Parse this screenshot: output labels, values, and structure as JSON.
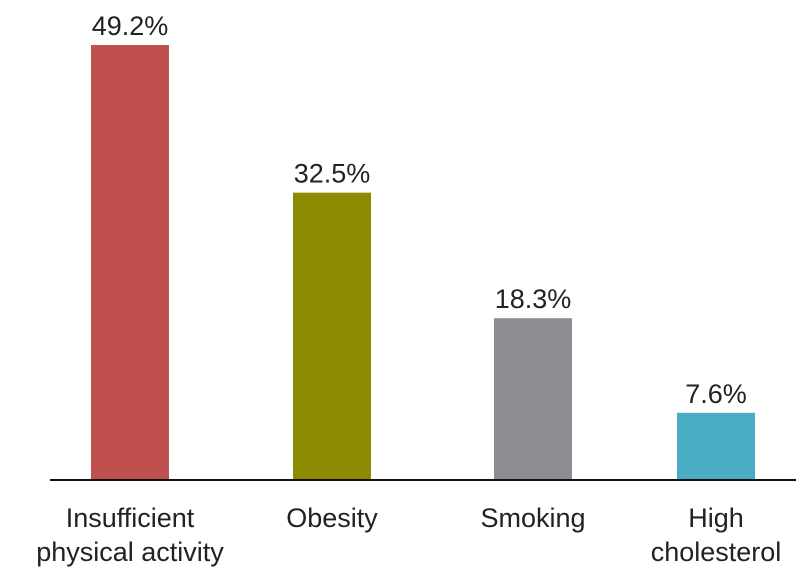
{
  "chart_data": {
    "type": "bar",
    "title": "",
    "xlabel": "",
    "ylabel": "",
    "categories": [
      [
        "Insufficient",
        "physical activity"
      ],
      [
        "Obesity"
      ],
      [
        "Smoking"
      ],
      [
        "High",
        "cholesterol"
      ]
    ],
    "values": [
      49.2,
      32.5,
      18.3,
      7.6
    ],
    "value_labels": [
      "49.2%",
      "32.5%",
      "18.3%",
      "7.6%"
    ],
    "colors": [
      "#c0504d",
      "#8b8a00",
      "#8d8e91",
      "#4bacc6"
    ],
    "ylim": [
      0,
      49.2
    ],
    "grid": false,
    "legend": "none"
  }
}
